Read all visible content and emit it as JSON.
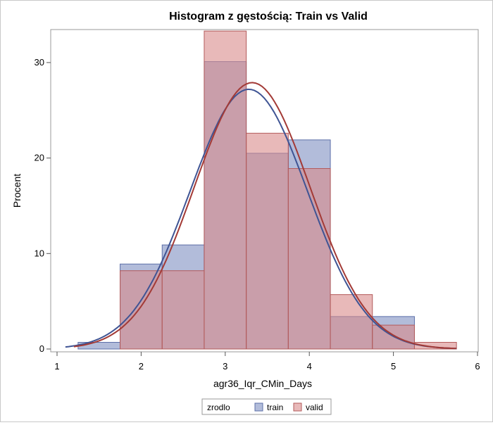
{
  "chart_data": {
    "type": "bar",
    "title": "Histogram z gęstością: Train vs Valid",
    "xlabel": "agr36_Iqr_CMin_Days",
    "ylabel": "Procent",
    "xlim": [
      1,
      6
    ],
    "ylim": [
      0,
      33.5
    ],
    "x_ticks": [
      "1",
      "2",
      "3",
      "4",
      "5",
      "6"
    ],
    "y_ticks": [
      "0",
      "10",
      "20",
      "30"
    ],
    "x_tick_values": [
      1,
      2,
      3,
      4,
      5,
      6
    ],
    "y_tick_values": [
      0,
      10,
      20,
      30
    ],
    "bins": [
      [
        1.25,
        1.75
      ],
      [
        1.75,
        2.25
      ],
      [
        2.25,
        2.75
      ],
      [
        2.75,
        3.25
      ],
      [
        3.25,
        3.75
      ],
      [
        3.75,
        4.25
      ],
      [
        4.25,
        4.75
      ],
      [
        4.75,
        5.25
      ],
      [
        5.25,
        5.75
      ]
    ],
    "series": [
      {
        "name": "train",
        "values": [
          0.7,
          8.9,
          10.9,
          30.1,
          20.5,
          21.9,
          3.4,
          3.4,
          0
        ],
        "color": "#7e8fc2",
        "edge_color": "#5c6fa8",
        "density": {
          "curve": "normal",
          "mean": 3.28,
          "sd": 0.7,
          "peak": 27.2,
          "x_range": [
            1.1,
            5.75
          ],
          "color": "#3f5494"
        }
      },
      {
        "name": "valid",
        "values": [
          0,
          8.2,
          8.2,
          33.3,
          22.6,
          18.9,
          5.7,
          2.5,
          0.7
        ],
        "color": "#d88a8a",
        "edge_color": "#b35a5a",
        "density": {
          "curve": "normal",
          "mean": 3.32,
          "sd": 0.69,
          "peak": 27.9,
          "x_range": [
            1.2,
            5.75
          ],
          "color": "#a33a36"
        }
      }
    ],
    "legend": {
      "title": "zrodlo",
      "position": "bottom"
    }
  }
}
